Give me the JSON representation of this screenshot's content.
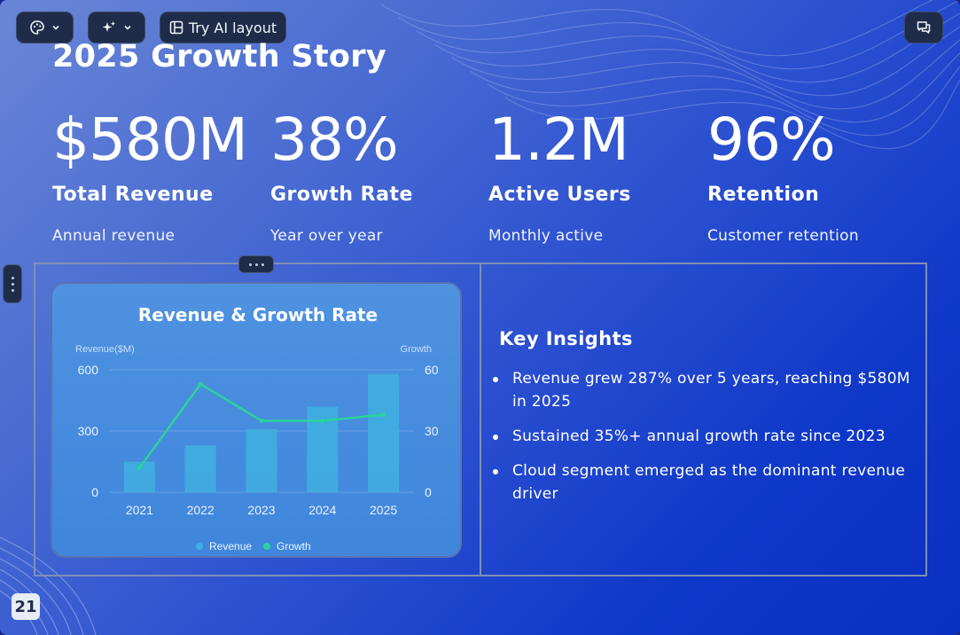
{
  "toolbar": {
    "theme_icon": "palette-icon",
    "ai_icon": "sparkles-icon",
    "ai_layout_label": "Try AI layout",
    "ai_layout_icon": "layout-icon",
    "comments_icon": "comments-icon"
  },
  "slide": {
    "title": "2025 Growth Story",
    "page_number": "21"
  },
  "kpis": [
    {
      "value": "$580M",
      "label": "Total Revenue",
      "sub": "Annual revenue"
    },
    {
      "value": "38%",
      "label": "Growth Rate",
      "sub": "Year over year"
    },
    {
      "value": "1.2M",
      "label": "Active Users",
      "sub": "Monthly active"
    },
    {
      "value": "96%",
      "label": "Retention",
      "sub": "Customer retention"
    }
  ],
  "insights": {
    "title": "Key Insights",
    "items": [
      "Revenue grew 287% over 5 years, reaching $580M in 2025",
      "Sustained 35%+ annual growth rate since 2023",
      "Cloud segment emerged as the dominant revenue driver"
    ]
  },
  "chart_data": {
    "type": "bar",
    "title": "Revenue & Growth Rate",
    "categories": [
      "2021",
      "2022",
      "2023",
      "2024",
      "2025"
    ],
    "series": [
      {
        "name": "Revenue",
        "type": "bar",
        "axis": "left",
        "values": [
          150,
          230,
          310,
          420,
          580
        ],
        "color": "#3fb0e0"
      },
      {
        "name": "Growth",
        "type": "line",
        "axis": "right",
        "values": [
          12,
          53,
          35,
          35,
          38
        ],
        "color": "#2bd39a"
      }
    ],
    "left_axis": {
      "label": "Revenue($M)",
      "ticks": [
        "0",
        "300",
        "600"
      ],
      "range": [
        0,
        600
      ]
    },
    "right_axis": {
      "label": "Growth",
      "ticks": [
        "0",
        "30",
        "60"
      ],
      "range": [
        0,
        60
      ]
    },
    "legend_position": "bottom-center",
    "grid": true
  }
}
